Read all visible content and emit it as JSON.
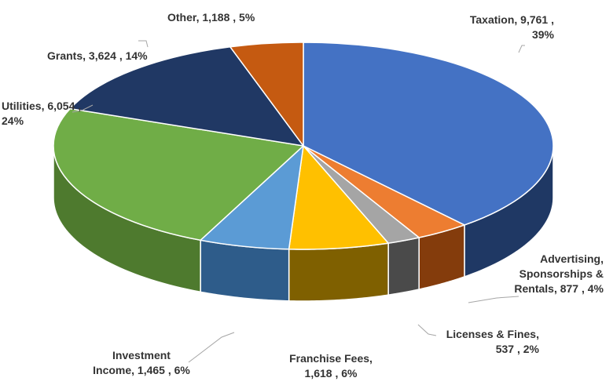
{
  "chart_data": {
    "type": "pie",
    "title": "",
    "style": "3d",
    "start_angle_deg": 90,
    "direction": "clockwise",
    "slices": [
      {
        "category": "Taxation",
        "value": 9761,
        "percent": "39%",
        "color": "#4472C4",
        "dark": "#1F3864",
        "label_lines": [
          "Taxation,  9,761 ,",
          "39%"
        ]
      },
      {
        "category": "Advertising, Sponsorships & Rentals",
        "value": 877,
        "percent": "4%",
        "color": "#ED7D31",
        "dark": "#843C0C",
        "label_lines": [
          "Advertising,",
          "Sponsorships &",
          "Rentals,  877 , 4%"
        ]
      },
      {
        "category": "Licenses & Fines",
        "value": 537,
        "percent": "2%",
        "color": "#A5A5A5",
        "dark": "#4A4A4A",
        "label_lines": [
          "Licenses & Fines,",
          "537 , 2%"
        ]
      },
      {
        "category": "Franchise Fees",
        "value": 1618,
        "percent": "6%",
        "color": "#FFC000",
        "dark": "#7F6000",
        "label_lines": [
          "Franchise Fees,",
          "1,618 , 6%"
        ]
      },
      {
        "category": "Investment Income",
        "value": 1465,
        "percent": "6%",
        "color": "#5B9BD5",
        "dark": "#2E5C8A",
        "label_lines": [
          "Investment",
          "Income,  1,465 , 6%"
        ]
      },
      {
        "category": "Utilities",
        "value": 6054,
        "percent": "24%",
        "color": "#70AD47",
        "dark": "#4E7A2E",
        "label_lines": [
          "Utilities,  6,054 ,",
          "24%"
        ]
      },
      {
        "category": "Grants",
        "value": 3624,
        "percent": "14%",
        "color": "#203864",
        "dark": "#111F38",
        "label_lines": [
          "Grants,  3,624 , 14%"
        ]
      },
      {
        "category": "Other",
        "value": 1188,
        "percent": "5%",
        "color": "#C55A11",
        "dark": "#6B300A",
        "label_lines": [
          "Other,  1,188 , 5%"
        ]
      }
    ]
  }
}
